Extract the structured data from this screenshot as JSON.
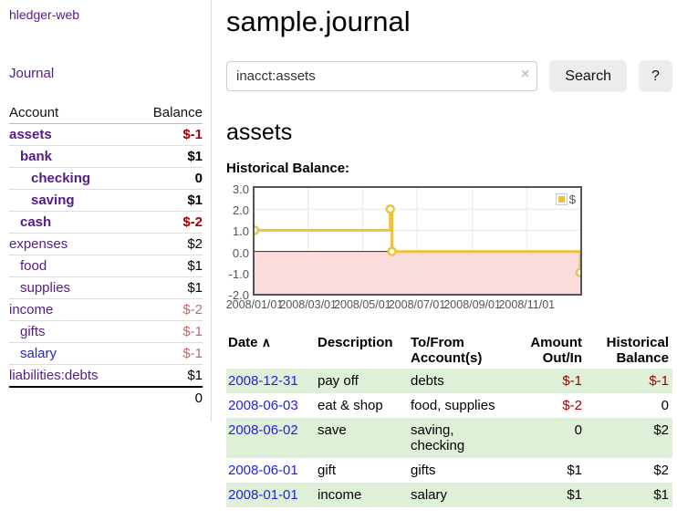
{
  "sidebar": {
    "brand": "hledger-web",
    "nav": {
      "journal": "Journal"
    },
    "accounts_table": {
      "headers": {
        "account": "Account",
        "balance": "Balance"
      },
      "rows": [
        {
          "name": "assets",
          "balance": "$-1"
        },
        {
          "name": "bank",
          "balance": "$1"
        },
        {
          "name": "checking",
          "balance": "0"
        },
        {
          "name": "saving",
          "balance": "$1"
        },
        {
          "name": "cash",
          "balance": "$-2"
        },
        {
          "name": "expenses",
          "balance": "$2"
        },
        {
          "name": "food",
          "balance": "$1"
        },
        {
          "name": "supplies",
          "balance": "$1"
        },
        {
          "name": "income",
          "balance": "$-2"
        },
        {
          "name": "gifts",
          "balance": "$-1"
        },
        {
          "name": "salary",
          "balance": "$-1"
        },
        {
          "name": "liabilities:debts",
          "balance": "$1"
        }
      ],
      "total": "0"
    }
  },
  "header": {
    "title": "sample.journal"
  },
  "search": {
    "query": "inacct:assets",
    "clear_icon": "×",
    "button": "Search",
    "help_button": "?"
  },
  "account_page": {
    "heading": "assets",
    "chart_label": "Historical Balance:"
  },
  "chart_data": {
    "type": "line",
    "title": "Historical Balance:",
    "step": true,
    "series": [
      {
        "name": "$",
        "color": "#edc240",
        "points": [
          [
            "2008-01-01",
            1
          ],
          [
            "2008-06-01",
            2
          ],
          [
            "2008-06-03",
            0
          ],
          [
            "2008-12-31",
            -1
          ]
        ]
      }
    ],
    "ylim": [
      -2,
      3
    ],
    "yticks": [
      3.0,
      2.0,
      1.0,
      0.0,
      -1.0,
      -2.0
    ],
    "xticks": [
      "2008/01/01",
      "2008/03/01",
      "2008/05/01",
      "2008/07/01",
      "2008/09/01",
      "2008/11/01"
    ],
    "xrange": [
      "2008-01-01",
      "2008-12-31"
    ],
    "legend": {
      "label": "$",
      "position": "top-right"
    },
    "grid": true,
    "grid_color": "#e8e8e8",
    "negative_region_color": "#fbdbdb",
    "zero_line_color": "#8b0000"
  },
  "register_table": {
    "headers": {
      "date": "Date",
      "sort_icon": "∧",
      "description": "Description",
      "accounts": "To/From Account(s)",
      "amount": "Amount Out/In",
      "balance": "Historical Balance"
    },
    "rows": [
      {
        "date": "2008-12-31",
        "description": "pay off",
        "accounts": "debts",
        "amount": "$-1",
        "balance": "$-1"
      },
      {
        "date": "2008-06-03",
        "description": "eat & shop",
        "accounts": "food, supplies",
        "amount": "$-2",
        "balance": "0"
      },
      {
        "date": "2008-06-02",
        "description": "save",
        "accounts": "saving, checking",
        "amount": "0",
        "balance": "$2"
      },
      {
        "date": "2008-06-01",
        "description": "gift",
        "accounts": "gifts",
        "amount": "$1",
        "balance": "$2"
      },
      {
        "date": "2008-01-01",
        "description": "income",
        "accounts": "salary",
        "amount": "$1",
        "balance": "$1"
      }
    ]
  },
  "colors": {
    "link_purple": "#551a8b",
    "link_blue": "#2222dd",
    "negative_red": "#a40000",
    "negative_light_red": "#c06a6e",
    "row_green": "#dff0d8",
    "series_yellow": "#edc240",
    "chart_border": "#545454",
    "zero_line": "#8b0000",
    "negative_region": "#fbdbdb",
    "button_gray": "#ececec"
  }
}
